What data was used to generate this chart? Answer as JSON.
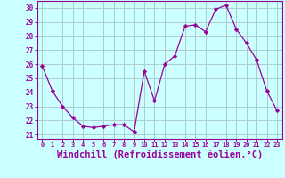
{
  "x": [
    0,
    1,
    2,
    3,
    4,
    5,
    6,
    7,
    8,
    9,
    10,
    11,
    12,
    13,
    14,
    15,
    16,
    17,
    18,
    19,
    20,
    21,
    22,
    23
  ],
  "y": [
    25.9,
    24.1,
    23.0,
    22.2,
    21.6,
    21.5,
    21.6,
    21.7,
    21.7,
    21.2,
    25.5,
    23.4,
    26.0,
    26.6,
    28.7,
    28.8,
    28.3,
    29.9,
    30.2,
    28.5,
    27.5,
    26.3,
    24.1,
    22.7
  ],
  "line_color": "#990099",
  "marker": "D",
  "marker_size": 2.2,
  "bg_color": "#ccffff",
  "grid_color": "#aacccc",
  "xlabel": "Windchill (Refroidissement éolien,°C)",
  "xlabel_fontsize": 7.5,
  "yticks": [
    21,
    22,
    23,
    24,
    25,
    26,
    27,
    28,
    29,
    30
  ],
  "xticks": [
    0,
    1,
    2,
    3,
    4,
    5,
    6,
    7,
    8,
    9,
    10,
    11,
    12,
    13,
    14,
    15,
    16,
    17,
    18,
    19,
    20,
    21,
    22,
    23
  ],
  "ylim": [
    20.7,
    30.5
  ],
  "xlim": [
    -0.5,
    23.5
  ]
}
